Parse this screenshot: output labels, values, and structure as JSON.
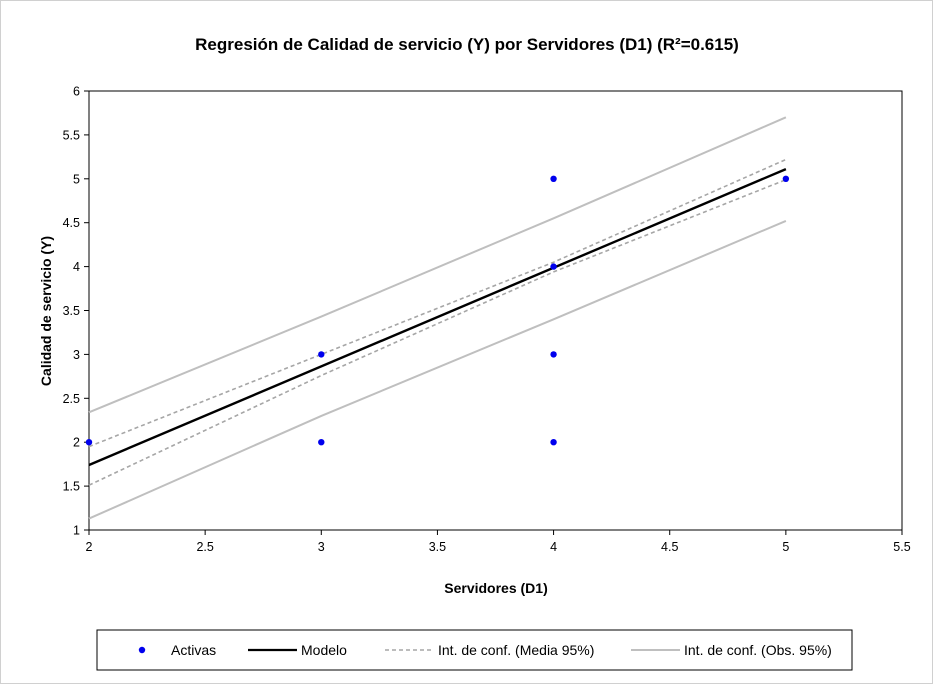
{
  "chart_data": {
    "type": "scatter",
    "title": "Regresión de Calidad de servicio (Y) por Servidores (D1) (R²=0.615)",
    "xlabel": "Servidores (D1)",
    "ylabel": "Calidad de servicio (Y)",
    "xlim": [
      2,
      5.5
    ],
    "ylim": [
      1,
      6
    ],
    "xticks": [
      2,
      2.5,
      3,
      3.5,
      4,
      4.5,
      5,
      5.5
    ],
    "xtick_labels": [
      "2",
      "2.5",
      "3",
      "3.5",
      "4",
      "4.5",
      "5",
      "5.5"
    ],
    "yticks": [
      1,
      1.5,
      2,
      2.5,
      3,
      3.5,
      4,
      4.5,
      5,
      5.5,
      6
    ],
    "ytick_labels": [
      "1",
      "1.5",
      "2",
      "2.5",
      "3",
      "3.5",
      "4",
      "4.5",
      "5",
      "5.5",
      "6"
    ],
    "grid": false,
    "legend_position": "bottom",
    "series": [
      {
        "name": "Activas",
        "kind": "points",
        "color": "#0000ee",
        "points": [
          [
            2,
            2
          ],
          [
            3,
            3
          ],
          [
            3,
            2
          ],
          [
            4,
            5
          ],
          [
            4,
            4
          ],
          [
            4,
            3
          ],
          [
            4,
            2
          ],
          [
            5,
            5
          ]
        ]
      },
      {
        "name": "Modelo",
        "kind": "line",
        "color": "#000000",
        "points": [
          [
            2,
            1.74
          ],
          [
            5,
            5.11
          ]
        ]
      },
      {
        "name": "Int. de conf. (Media 95%)",
        "kind": "dashed-band",
        "color": "#a6a6a6",
        "upper": [
          [
            2,
            1.95
          ],
          [
            3,
            3.0
          ],
          [
            4,
            4.05
          ],
          [
            5,
            5.22
          ]
        ],
        "lower": [
          [
            2,
            1.51
          ],
          [
            3,
            2.76
          ],
          [
            4,
            3.94
          ],
          [
            5,
            4.99
          ]
        ]
      },
      {
        "name": "Int. de conf. (Obs. 95%)",
        "kind": "band",
        "color": "#bfbfbf",
        "upper": [
          [
            2,
            2.34
          ],
          [
            3,
            3.43
          ],
          [
            4,
            4.55
          ],
          [
            5,
            5.7
          ]
        ],
        "lower": [
          [
            2,
            1.13
          ],
          [
            3,
            2.3
          ],
          [
            4,
            3.4
          ],
          [
            5,
            4.52
          ]
        ]
      }
    ]
  }
}
